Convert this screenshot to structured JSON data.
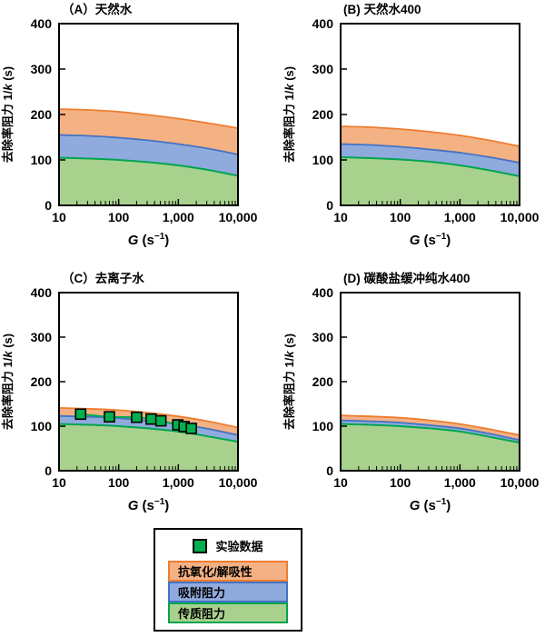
{
  "colors": {
    "antioxidation_fill": "#F4B183",
    "antioxidation_stroke": "#ED7D31",
    "adsorption_fill": "#8FAADC",
    "adsorption_stroke": "#4472C4",
    "mass_transfer_fill": "#A9D18E",
    "mass_transfer_stroke": "#00A550",
    "marker_fill": "#00B050",
    "marker_stroke": "#000000",
    "axis": "#000000"
  },
  "axes": {
    "ylabel": "去除率阻力 1/k (s)",
    "ylabel_parts": {
      "prefix": "去除率阻力 1/",
      "italic": "k",
      "suffix": " (s)"
    },
    "xlabel": "G (s−1)",
    "xlabel_parts": {
      "italic": "G",
      "open": " (s",
      "sup": "−1",
      "close": ")"
    },
    "ylim": [
      0,
      400
    ],
    "y_ticks": [
      "0",
      "100",
      "200",
      "300",
      "400"
    ],
    "y_tick_values": [
      0,
      100,
      200,
      300,
      400
    ],
    "xlim": [
      10,
      10000
    ],
    "x_scale": "log",
    "x_ticks": [
      "10",
      "100",
      "1,000",
      "10,000"
    ],
    "x_tick_values": [
      10,
      100,
      1000,
      10000
    ]
  },
  "chart_data": [
    {
      "id": "A",
      "type": "area",
      "title": "（A）天然水",
      "stacking": "values are cumulative band tops (s)",
      "x": [
        10,
        32,
        100,
        316,
        1000,
        3162,
        10000
      ],
      "series": [
        {
          "name": "传质阻力",
          "top": [
            105,
            103,
            100,
            95,
            88,
            78,
            65
          ]
        },
        {
          "name": "吸附阻力",
          "top": [
            155,
            153,
            149,
            143,
            135,
            125,
            112
          ]
        },
        {
          "name": "抗氧化/解吸性",
          "top": [
            212,
            210,
            206,
            199,
            191,
            181,
            170
          ]
        }
      ]
    },
    {
      "id": "B",
      "type": "area",
      "title": "(B) 天然水400",
      "stacking": "values are cumulative band tops (s)",
      "x": [
        10,
        32,
        100,
        316,
        1000,
        3162,
        10000
      ],
      "series": [
        {
          "name": "传质阻力",
          "top": [
            106,
            104,
            101,
            96,
            88,
            77,
            64
          ]
        },
        {
          "name": "吸附阻力",
          "top": [
            135,
            133,
            129,
            123,
            116,
            106,
            94
          ]
        },
        {
          "name": "抗氧化/解吸性",
          "top": [
            174,
            172,
            168,
            162,
            154,
            143,
            130
          ]
        }
      ]
    },
    {
      "id": "C",
      "type": "area",
      "title": "（C）去离子水",
      "stacking": "values are cumulative band tops (s)",
      "x": [
        10,
        32,
        100,
        316,
        1000,
        3162,
        10000
      ],
      "series": [
        {
          "name": "传质阻力",
          "top": [
            105,
            103,
            100,
            95,
            88,
            77,
            65
          ]
        },
        {
          "name": "吸附阻力",
          "top": [
            123,
            121,
            118,
            112,
            105,
            94,
            80
          ]
        },
        {
          "name": "抗氧化/解吸性",
          "top": [
            141,
            139,
            136,
            130,
            122,
            111,
            97
          ]
        }
      ],
      "points": {
        "name": "实验数据",
        "G": [
          23,
          70,
          200,
          350,
          510,
          980,
          1250,
          1650
        ],
        "y": [
          127,
          121,
          120,
          116,
          112,
          103,
          99,
          95
        ]
      }
    },
    {
      "id": "D",
      "type": "area",
      "title": "(D) 碳酸盐缓冲纯水400",
      "stacking": "values are cumulative band tops (s)",
      "x": [
        10,
        32,
        100,
        316,
        1000,
        3162,
        10000
      ],
      "series": [
        {
          "name": "传质阻力",
          "top": [
            105,
            103,
            100,
            95,
            88,
            76,
            63
          ]
        },
        {
          "name": "吸附阻力",
          "top": [
            113,
            111,
            108,
            102,
            95,
            83,
            69
          ]
        },
        {
          "name": "抗氧化/解吸性",
          "top": [
            124,
            122,
            119,
            113,
            105,
            93,
            80
          ]
        }
      ]
    }
  ],
  "legend": {
    "items": [
      {
        "label": "实验数据",
        "swatch": "marker"
      },
      {
        "label": "抗氧化/解吸性",
        "swatch": "antioxidation"
      },
      {
        "label": "吸附阻力",
        "swatch": "adsorption"
      },
      {
        "label": "传质阻力",
        "swatch": "mass_transfer"
      }
    ]
  }
}
